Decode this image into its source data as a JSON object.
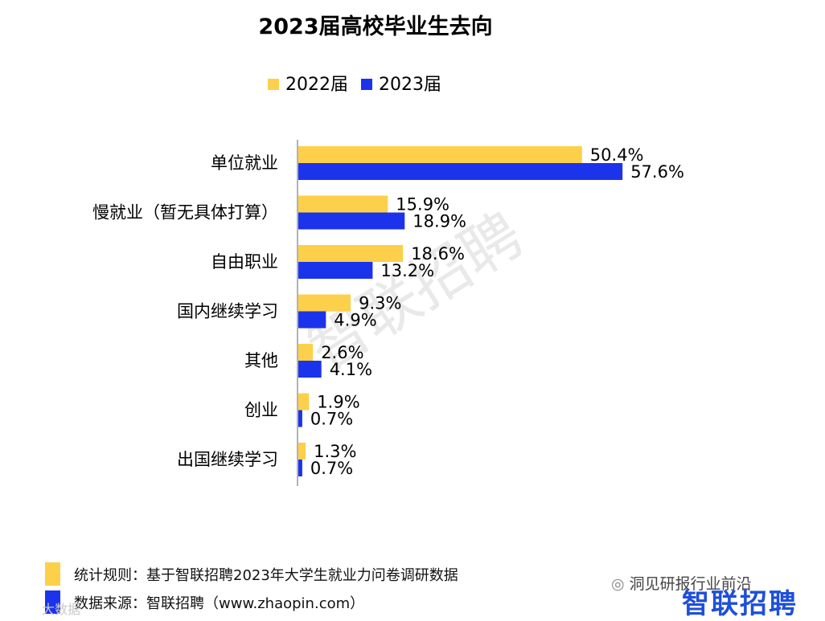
{
  "colors": {
    "series_2022": "#fcd04a",
    "series_2023": "#1c33ec",
    "axis": "#999999",
    "watermark": "#e9e9e9",
    "brand": "#1e4fd8"
  },
  "chart_data": {
    "type": "bar",
    "orientation": "horizontal",
    "title": "2023届高校毕业生去向",
    "categories": [
      "单位就业",
      "慢就业（暂无具体打算）",
      "自由职业",
      "国内继续学习",
      "其他",
      "创业",
      "出国继续学习"
    ],
    "series": [
      {
        "name": "2022届",
        "values": [
          50.4,
          15.9,
          18.6,
          9.3,
          2.6,
          1.9,
          1.3
        ],
        "labels": [
          "50.4%",
          "15.9%",
          "18.6%",
          "9.3%",
          "2.6%",
          "1.9%",
          "1.3%"
        ]
      },
      {
        "name": "2023届",
        "values": [
          57.6,
          18.9,
          13.2,
          4.9,
          4.1,
          0.7,
          0.7
        ],
        "labels": [
          "57.6%",
          "18.9%",
          "13.2%",
          "4.9%",
          "4.1%",
          "0.7%",
          "0.7%"
        ]
      }
    ],
    "xlim": [
      0,
      60
    ],
    "legend_position": "top-center",
    "grid": false
  },
  "watermark": "智联招聘",
  "notes": {
    "rule": "统计规则：基于智联招聘2023年大学生就业力问卷调研数据",
    "source": "数据来源：智联招聘（www.zhaopin.com）"
  },
  "brand_logo": "智联招聘",
  "wechat_account": "洞见研报行业前沿",
  "corner_watermark": "大数据"
}
